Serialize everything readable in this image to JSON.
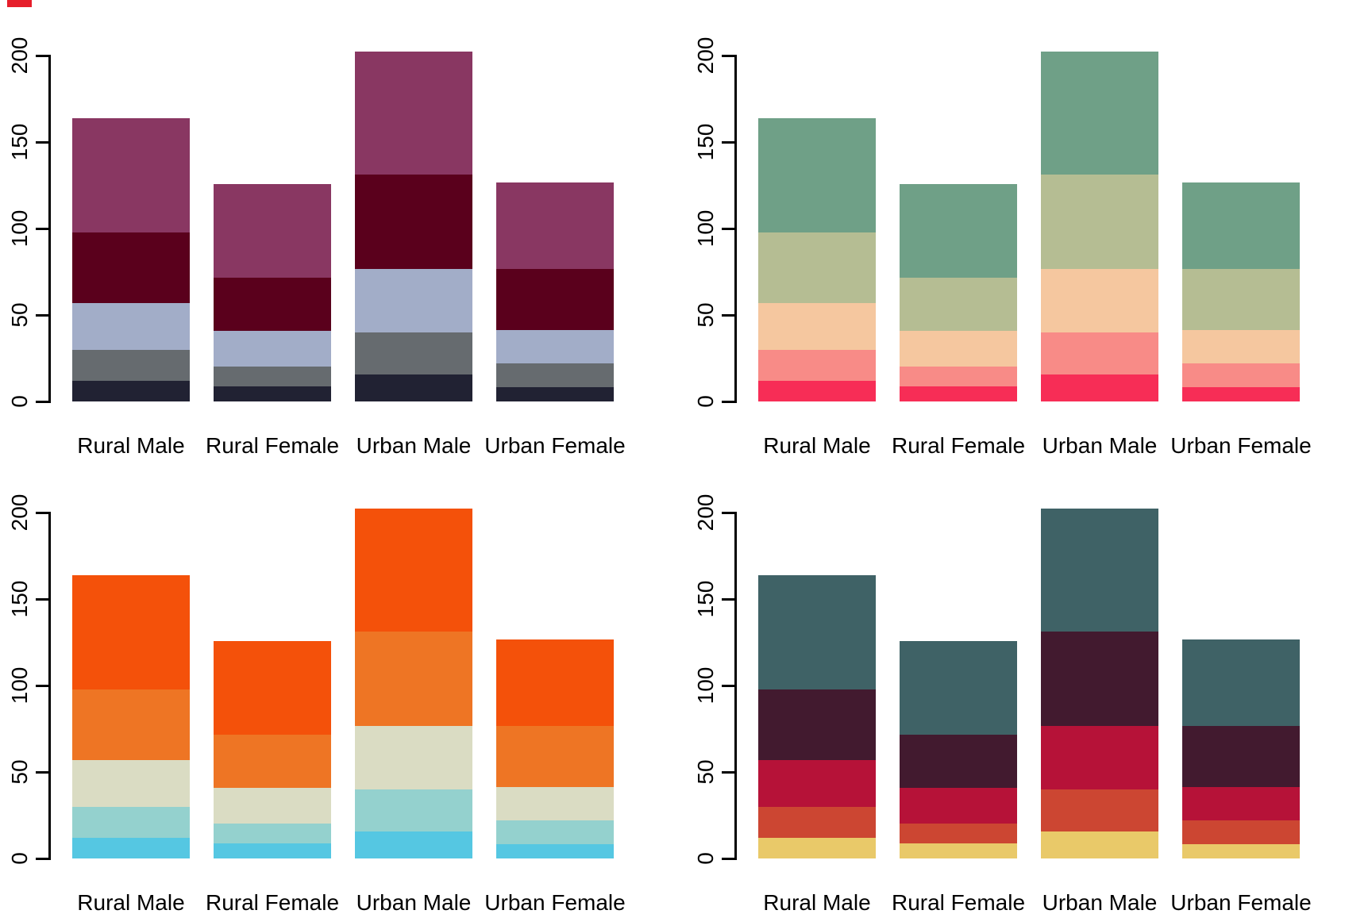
{
  "figure": {
    "background": "#ffffff",
    "text_color": "#000000",
    "layout": "2x2-grid",
    "top_left_mark_color": "#e61e2b"
  },
  "chart_data": [
    {
      "type": "bar",
      "stacked": true,
      "position": "top-left",
      "title": "",
      "xlabel": "",
      "ylabel": "",
      "grid": false,
      "legend": "none",
      "categories": [
        "Rural Male",
        "Rural Female",
        "Urban Male",
        "Urban Female"
      ],
      "series": [
        {
          "values": [
            11.7,
            8.7,
            15.4,
            8.4
          ]
        },
        {
          "values": [
            18.1,
            11.7,
            24.3,
            13.6
          ]
        },
        {
          "values": [
            26.9,
            20.3,
            37.0,
            19.3
          ]
        },
        {
          "values": [
            41.0,
            30.9,
            54.6,
            35.1
          ]
        },
        {
          "values": [
            66.0,
            54.3,
            71.1,
            50.0
          ]
        }
      ],
      "totals": [
        163.7,
        125.9,
        202.4,
        126.4
      ],
      "colors": [
        "#212233",
        "#666b6f",
        "#a2adc8",
        "#5a001c",
        "#893762"
      ],
      "ylim": [
        0,
        200
      ],
      "yticks": [
        0,
        50,
        100,
        150,
        200
      ]
    },
    {
      "type": "bar",
      "stacked": true,
      "position": "top-right",
      "title": "",
      "xlabel": "",
      "ylabel": "",
      "grid": false,
      "legend": "none",
      "categories": [
        "Rural Male",
        "Rural Female",
        "Urban Male",
        "Urban Female"
      ],
      "series": [
        {
          "values": [
            11.7,
            8.7,
            15.4,
            8.4
          ]
        },
        {
          "values": [
            18.1,
            11.7,
            24.3,
            13.6
          ]
        },
        {
          "values": [
            26.9,
            20.3,
            37.0,
            19.3
          ]
        },
        {
          "values": [
            41.0,
            30.9,
            54.6,
            35.1
          ]
        },
        {
          "values": [
            66.0,
            54.3,
            71.1,
            50.0
          ]
        }
      ],
      "totals": [
        163.7,
        125.9,
        202.4,
        126.4
      ],
      "colors": [
        "#f72d56",
        "#f88b87",
        "#f5c79f",
        "#b5bd93",
        "#6fa087"
      ],
      "ylim": [
        0,
        200
      ],
      "yticks": [
        0,
        50,
        100,
        150,
        200
      ]
    },
    {
      "type": "bar",
      "stacked": true,
      "position": "bottom-left",
      "title": "",
      "xlabel": "",
      "ylabel": "",
      "grid": false,
      "legend": "none",
      "categories": [
        "Rural Male",
        "Rural Female",
        "Urban Male",
        "Urban Female"
      ],
      "series": [
        {
          "values": [
            11.7,
            8.7,
            15.4,
            8.4
          ]
        },
        {
          "values": [
            18.1,
            11.7,
            24.3,
            13.6
          ]
        },
        {
          "values": [
            26.9,
            20.3,
            37.0,
            19.3
          ]
        },
        {
          "values": [
            41.0,
            30.9,
            54.6,
            35.1
          ]
        },
        {
          "values": [
            66.0,
            54.3,
            71.1,
            50.0
          ]
        }
      ],
      "totals": [
        163.7,
        125.9,
        202.4,
        126.4
      ],
      "colors": [
        "#55c7e2",
        "#94d1ce",
        "#dadcc3",
        "#ee7524",
        "#f4510a"
      ],
      "ylim": [
        0,
        200
      ],
      "yticks": [
        0,
        50,
        100,
        150,
        200
      ]
    },
    {
      "type": "bar",
      "stacked": true,
      "position": "bottom-right",
      "title": "",
      "xlabel": "",
      "ylabel": "",
      "grid": false,
      "legend": "none",
      "categories": [
        "Rural Male",
        "Rural Female",
        "Urban Male",
        "Urban Female"
      ],
      "series": [
        {
          "values": [
            11.7,
            8.7,
            15.4,
            8.4
          ]
        },
        {
          "values": [
            18.1,
            11.7,
            24.3,
            13.6
          ]
        },
        {
          "values": [
            26.9,
            20.3,
            37.0,
            19.3
          ]
        },
        {
          "values": [
            41.0,
            30.9,
            54.6,
            35.1
          ]
        },
        {
          "values": [
            66.0,
            54.3,
            71.1,
            50.0
          ]
        }
      ],
      "totals": [
        163.7,
        125.9,
        202.4,
        126.4
      ],
      "colors": [
        "#e9c969",
        "#cc4632",
        "#b61238",
        "#421a2f",
        "#3f6266"
      ],
      "ylim": [
        0,
        200
      ],
      "yticks": [
        0,
        50,
        100,
        150,
        200
      ]
    }
  ]
}
